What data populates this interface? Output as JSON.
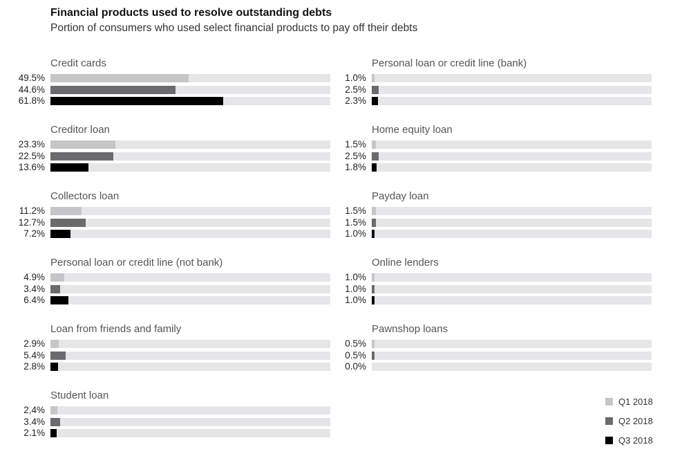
{
  "chart_data": {
    "type": "bar",
    "orientation": "horizontal",
    "title": "Financial products used to resolve outstanding debts",
    "subtitle": "Portion of consumers who used select financial products to pay off their debts",
    "xlim": [
      0,
      100
    ],
    "unit": "%",
    "legend": {
      "position": "bottom-right",
      "entries": [
        "Q1 2018",
        "Q2 2018",
        "Q3 2018"
      ]
    },
    "series_colors": [
      "#c6c6c8",
      "#6b6b6e",
      "#000000"
    ],
    "track_color": "#e6e6e8",
    "groups": [
      {
        "name": "Credit cards",
        "values": [
          49.5,
          44.6,
          61.8
        ],
        "labels": [
          "49.5%",
          "44.6%",
          "61.8%"
        ]
      },
      {
        "name": "Creditor loan",
        "values": [
          23.3,
          22.5,
          13.6
        ],
        "labels": [
          "23.3%",
          "22.5%",
          "13.6%"
        ]
      },
      {
        "name": "Collectors loan",
        "values": [
          11.2,
          12.7,
          7.2
        ],
        "labels": [
          "11.2%",
          "12.7%",
          "7.2%"
        ]
      },
      {
        "name": "Personal loan or credit line (not bank)",
        "values": [
          4.9,
          3.4,
          6.4
        ],
        "labels": [
          "4.9%",
          "3.4%",
          "6.4%"
        ]
      },
      {
        "name": "Loan from friends and family",
        "values": [
          2.9,
          5.4,
          2.8
        ],
        "labels": [
          "2.9%",
          "5.4%",
          "2.8%"
        ]
      },
      {
        "name": "Student loan",
        "values": [
          2.4,
          3.4,
          2.1
        ],
        "labels": [
          "2,4%",
          "3.4%",
          "2.1%"
        ]
      },
      {
        "name": "Personal loan or credit line (bank)",
        "values": [
          1.0,
          2.5,
          2.3
        ],
        "labels": [
          "1.0%",
          "2.5%",
          "2.3%"
        ]
      },
      {
        "name": "Home equity loan",
        "values": [
          1.5,
          2.5,
          1.8
        ],
        "labels": [
          "1.5%",
          "2.5%",
          "1.8%"
        ]
      },
      {
        "name": "Payday loan",
        "values": [
          1.5,
          1.5,
          1.0
        ],
        "labels": [
          "1.5%",
          "1.5%",
          "1.0%"
        ]
      },
      {
        "name": "Online lenders",
        "values": [
          1.0,
          1.0,
          1.0
        ],
        "labels": [
          "1.0%",
          "1.0%",
          "1.0%"
        ]
      },
      {
        "name": "Pawnshop loans",
        "values": [
          0.5,
          0.5,
          0.0
        ],
        "labels": [
          "0.5%",
          "0.5%",
          "0.0%"
        ]
      }
    ]
  }
}
